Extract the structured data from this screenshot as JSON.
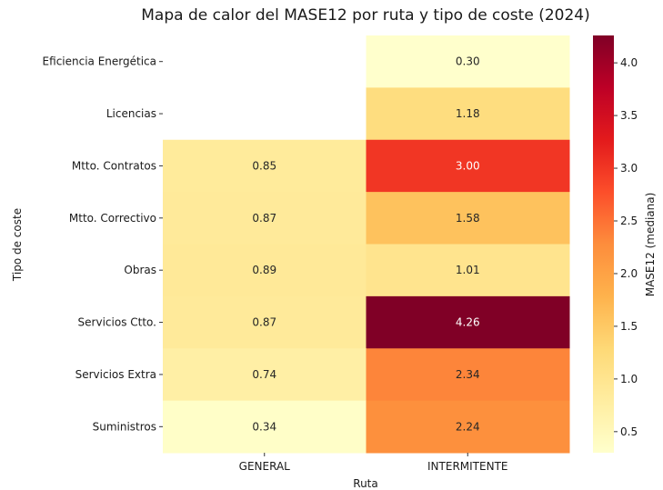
{
  "chart_data": {
    "type": "heatmap",
    "title": "Mapa de calor del MASE12 por ruta y tipo de coste (2024)",
    "xlabel": "Ruta",
    "ylabel": "Tipo de coste",
    "x_categories": [
      "GENERAL",
      "INTERMITENTE"
    ],
    "y_categories": [
      "Eficiencia Energética",
      "Licencias",
      "Mtto. Contratos",
      "Mtto. Correctivo",
      "Obras",
      "Servicios Ctto.",
      "Servicios Extra",
      "Suministros"
    ],
    "values": [
      [
        null,
        0.3
      ],
      [
        null,
        1.18
      ],
      [
        0.85,
        3.0
      ],
      [
        0.87,
        1.58
      ],
      [
        0.89,
        1.01
      ],
      [
        0.87,
        4.26
      ],
      [
        0.74,
        2.34
      ],
      [
        0.34,
        2.24
      ]
    ],
    "value_labels": [
      [
        "",
        "0.30"
      ],
      [
        "",
        "1.18"
      ],
      [
        "0.85",
        "3.00"
      ],
      [
        "0.87",
        "1.58"
      ],
      [
        "0.89",
        "1.01"
      ],
      [
        "0.87",
        "4.26"
      ],
      [
        "0.74",
        "2.34"
      ],
      [
        "0.34",
        "2.24"
      ]
    ],
    "colormap": "YlOrRd",
    "color_range": [
      0.3,
      4.26
    ],
    "colorbar": {
      "label": "MASE12 (mediana)",
      "ticks": [
        0.5,
        1.0,
        1.5,
        2.0,
        2.5,
        3.0,
        3.5,
        4.0
      ],
      "tick_labels": [
        "0.5",
        "1.0",
        "1.5",
        "2.0",
        "2.5",
        "3.0",
        "3.5",
        "4.0"
      ]
    },
    "grid": false
  }
}
